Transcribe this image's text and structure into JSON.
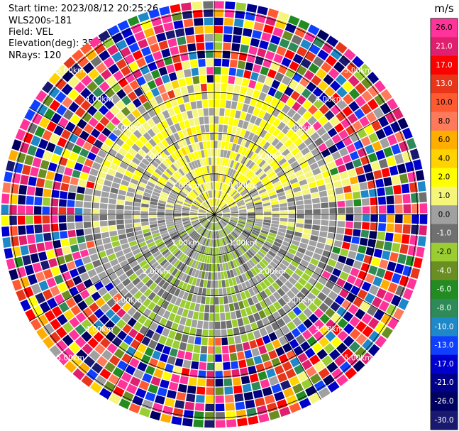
{
  "header": {
    "start_time": "Start time: 2023/08/12 20:25:26",
    "instrument": "WLS200s-181",
    "field": "Field: VEL",
    "elevation": "Elevation(deg): 35.30",
    "nrays": "NRays: 120"
  },
  "chart_data": {
    "type": "heatmap",
    "projection": "polar-ppi",
    "field": "VEL",
    "units": "m/s",
    "nrays": 120,
    "elevation_deg": 35.3,
    "range_rings": [
      {
        "km": 1.0,
        "label": "1.00km"
      },
      {
        "km": 2.0,
        "label": "2.00km"
      },
      {
        "km": 3.0,
        "label": "3.00km"
      },
      {
        "km": 4.0,
        "label": "4.00km"
      },
      {
        "km": 5.0,
        "label": "5.00km"
      }
    ],
    "max_range_km": 5.25,
    "pattern": {
      "near_north_positive_mps": 2.0,
      "near_south_negative_mps": -2.0,
      "noise_beyond_km": 3.0
    },
    "colorbar": {
      "unit_label": "m/s",
      "vmin": -30.0,
      "vmax": 30.0,
      "ticks": [
        "26.0",
        "21.0",
        "17.0",
        "13.0",
        "10.0",
        "8.0",
        "6.0",
        "4.0",
        "2.0",
        "1.0",
        "0.0",
        "-1.0",
        "-2.0",
        "-4.0",
        "-6.0",
        "-8.0",
        "-10.0",
        "-13.0",
        "-17.0",
        "-21.0",
        "-26.0",
        "-30.0"
      ],
      "colors": [
        "#ff3399",
        "#e0206f",
        "#ff0000",
        "#e8361a",
        "#ff5a32",
        "#ff7a5a",
        "#ffae00",
        "#ffd200",
        "#ffff00",
        "#f5f57a",
        "#a0a0a0",
        "#707070",
        "#9acd32",
        "#6b8e23",
        "#228b22",
        "#2e8b57",
        "#1e88c8",
        "#1040ff",
        "#0000cd",
        "#00008b",
        "#000060",
        "#191970"
      ]
    }
  }
}
